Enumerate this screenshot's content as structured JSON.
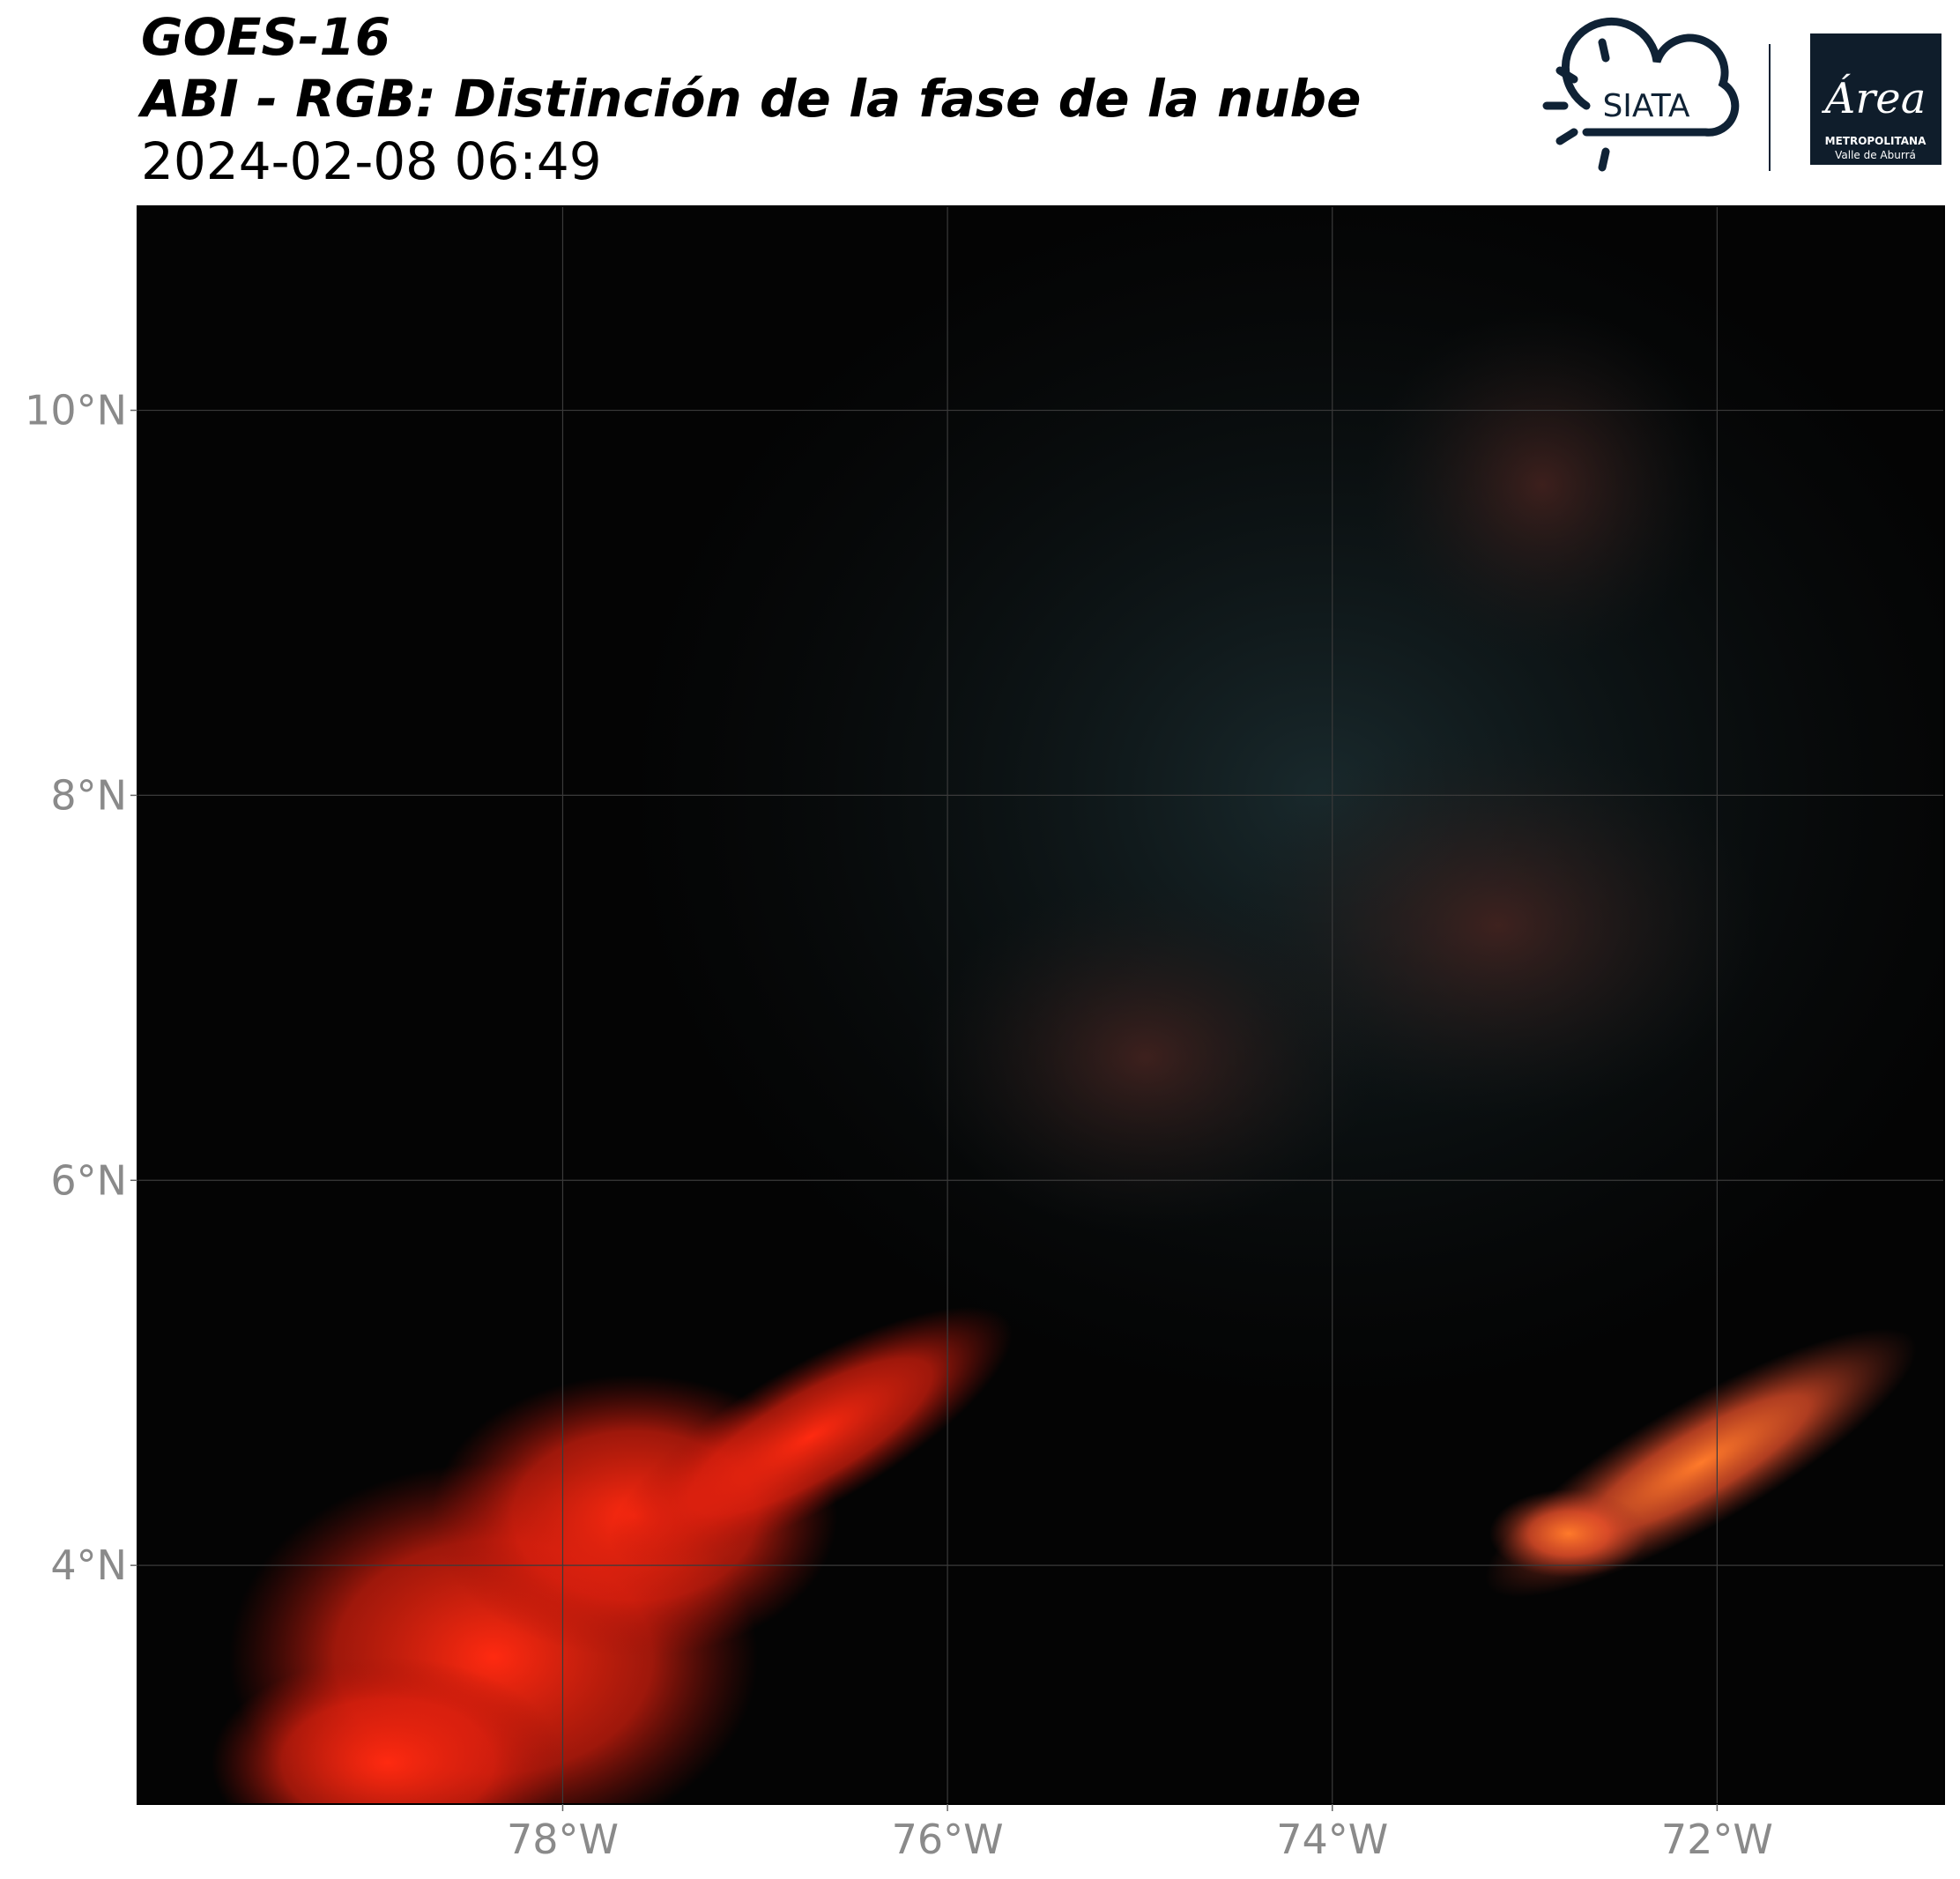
{
  "header": {
    "title": "GOES-16",
    "subtitle": "ABI - RGB: Distinción de la fase de la nube",
    "date": "2024-02-08 06:49"
  },
  "logos": {
    "siata": "SIATA",
    "area": "Área",
    "area_line1": "METROPOLITANA",
    "area_line2": "Valle de Aburrá"
  },
  "map": {
    "xlim": [
      -80.21,
      -70.82
    ],
    "ylim": [
      2.76,
      11.06
    ],
    "xticks": [
      {
        "value": -78,
        "label": "78°W"
      },
      {
        "value": -76,
        "label": "76°W"
      },
      {
        "value": -74,
        "label": "74°W"
      },
      {
        "value": -72,
        "label": "72°W"
      }
    ],
    "yticks": [
      {
        "value": 4,
        "label": "4°N"
      },
      {
        "value": 6,
        "label": "6°N"
      },
      {
        "value": 8,
        "label": "8°N"
      },
      {
        "value": 10,
        "label": "10°N"
      }
    ],
    "grid": true
  }
}
